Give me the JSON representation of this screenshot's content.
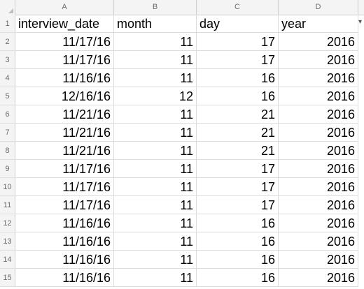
{
  "columns": [
    "A",
    "B",
    "C",
    "D"
  ],
  "header_row": {
    "row_number": "1",
    "cells": [
      "interview_date",
      "month",
      "day",
      "year"
    ]
  },
  "rows": [
    {
      "n": "2",
      "cells": [
        "11/17/16",
        "11",
        "17",
        "2016"
      ]
    },
    {
      "n": "3",
      "cells": [
        "11/17/16",
        "11",
        "17",
        "2016"
      ]
    },
    {
      "n": "4",
      "cells": [
        "11/16/16",
        "11",
        "16",
        "2016"
      ]
    },
    {
      "n": "5",
      "cells": [
        "12/16/16",
        "12",
        "16",
        "2016"
      ]
    },
    {
      "n": "6",
      "cells": [
        "11/21/16",
        "11",
        "21",
        "2016"
      ]
    },
    {
      "n": "7",
      "cells": [
        "11/21/16",
        "11",
        "21",
        "2016"
      ]
    },
    {
      "n": "8",
      "cells": [
        "11/21/16",
        "11",
        "21",
        "2016"
      ]
    },
    {
      "n": "9",
      "cells": [
        "11/17/16",
        "11",
        "17",
        "2016"
      ]
    },
    {
      "n": "10",
      "cells": [
        "11/17/16",
        "11",
        "17",
        "2016"
      ]
    },
    {
      "n": "11",
      "cells": [
        "11/17/16",
        "11",
        "17",
        "2016"
      ]
    },
    {
      "n": "12",
      "cells": [
        "11/16/16",
        "11",
        "16",
        "2016"
      ]
    },
    {
      "n": "13",
      "cells": [
        "11/16/16",
        "11",
        "16",
        "2016"
      ]
    },
    {
      "n": "14",
      "cells": [
        "11/16/16",
        "11",
        "16",
        "2016"
      ]
    },
    {
      "n": "15",
      "cells": [
        "11/16/16",
        "11",
        "16",
        "2016"
      ]
    }
  ],
  "colors": {
    "header_bg": "#f4f4f4",
    "grid_line": "#dcdcdc",
    "header_text": "#6b6b6b"
  }
}
